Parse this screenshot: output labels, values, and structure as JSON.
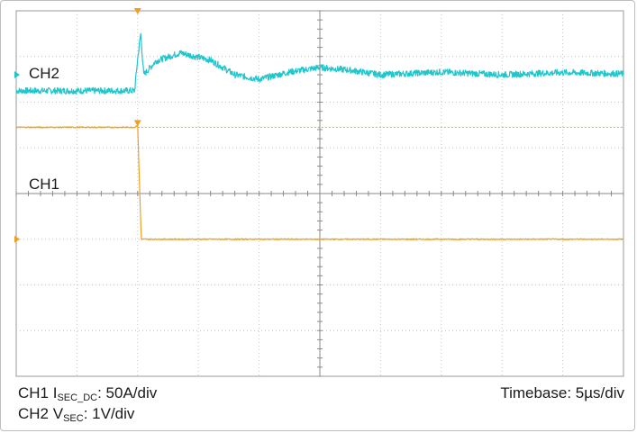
{
  "chart_data": {
    "type": "line",
    "x_unit": "div",
    "y_unit": "div",
    "xlim": [
      0,
      10
    ],
    "ylim": [
      -4,
      4
    ],
    "grid": true,
    "trigger_x": 2.0,
    "series": [
      {
        "name": "CH2",
        "color": "#1fc6cc",
        "baseline_level": 2.6,
        "x": [
          0.0,
          1.95,
          2.0,
          2.05,
          2.1,
          2.3,
          2.7,
          3.2,
          3.6,
          4.0,
          4.5,
          5.0,
          5.5,
          6.0,
          7.0,
          8.0,
          9.0,
          10.0
        ],
        "y": [
          2.25,
          2.25,
          2.95,
          3.5,
          2.6,
          2.9,
          3.08,
          2.92,
          2.6,
          2.5,
          2.66,
          2.76,
          2.7,
          2.6,
          2.66,
          2.6,
          2.65,
          2.62
        ]
      },
      {
        "name": "CH1",
        "color": "#f0a020",
        "baseline_level": -1.0,
        "reference_level": 1.45,
        "x": [
          0.0,
          1.95,
          2.0,
          2.03,
          2.06,
          10.0
        ],
        "y": [
          1.45,
          1.45,
          1.5,
          0.2,
          -1.0,
          -1.0
        ]
      }
    ]
  },
  "captions": {
    "ch1_prefix": "CH1 I",
    "ch1_sub": "SEC_DC",
    "ch1_scale": ": 50A/div",
    "ch2_prefix": "CH2 V",
    "ch2_sub": "SEC",
    "ch2_scale": ": 1V/div",
    "timebase": "Timebase: 5µs/div"
  }
}
